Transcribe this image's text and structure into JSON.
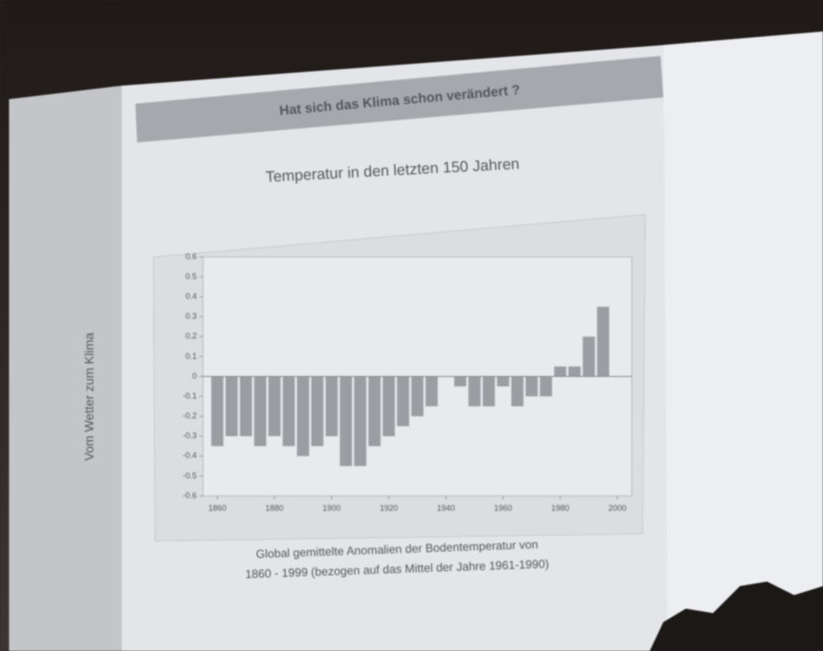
{
  "slide": {
    "title": "Hat sich das Klima schon verändert ?",
    "subtitle": "Temperatur in den letzten 150 Jahren",
    "caption": [
      "Global gemittelte Anomalien der Bodentemperatur von",
      "1860 - 1999 (bezogen auf das Mittel der Jahre 1961-1990)"
    ],
    "side_text": "Vom Wetter zum Klima"
  },
  "chart_data": {
    "type": "bar",
    "x": [
      1860,
      1865,
      1870,
      1875,
      1880,
      1885,
      1890,
      1895,
      1900,
      1905,
      1910,
      1915,
      1920,
      1925,
      1930,
      1935,
      1940,
      1945,
      1950,
      1955,
      1960,
      1965,
      1970,
      1975,
      1980,
      1985,
      1990,
      1995
    ],
    "values": [
      -0.35,
      -0.3,
      -0.3,
      -0.35,
      -0.3,
      -0.35,
      -0.4,
      -0.35,
      -0.3,
      -0.45,
      -0.45,
      -0.35,
      -0.3,
      -0.25,
      -0.2,
      -0.15,
      0.0,
      -0.05,
      -0.15,
      -0.15,
      -0.05,
      -0.15,
      -0.1,
      -0.1,
      0.05,
      0.05,
      0.2,
      0.35
    ],
    "color": "#9c9da2",
    "xlim": [
      1855,
      2005
    ],
    "xticks": [
      1860,
      1880,
      1900,
      1920,
      1940,
      1960,
      1980,
      2000
    ],
    "ylim": [
      -0.6,
      0.6
    ],
    "yticks": [
      -0.6,
      -0.5,
      -0.4,
      -0.3,
      -0.2,
      -0.1,
      0,
      0.1,
      0.2,
      0.3,
      0.4,
      0.5,
      0.6
    ]
  }
}
